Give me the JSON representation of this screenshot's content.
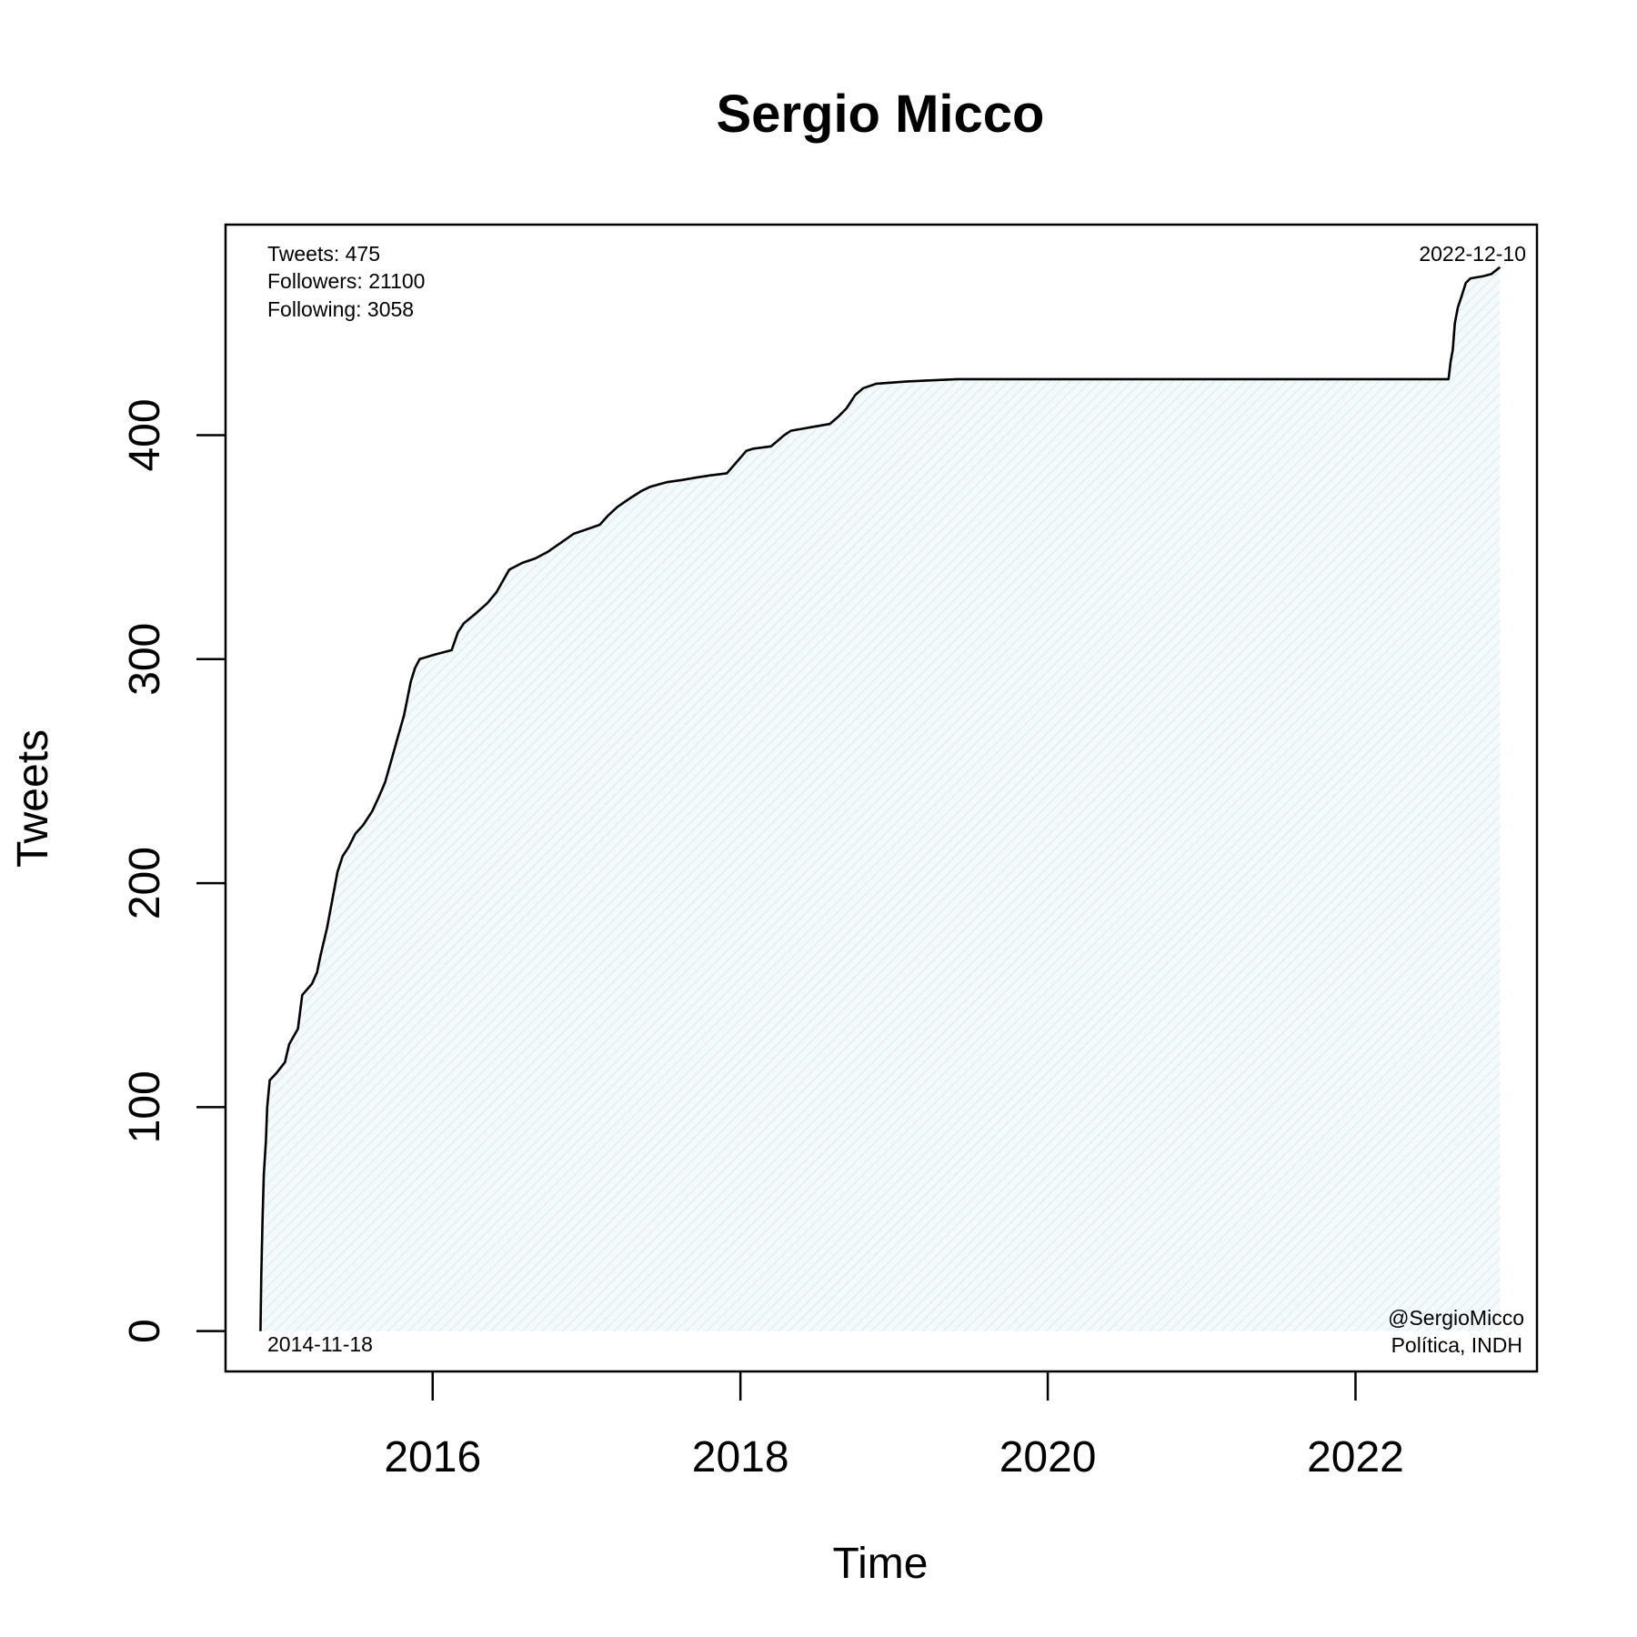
{
  "chart_data": {
    "type": "area",
    "title": "Sergio Micco",
    "xlabel": "Time",
    "ylabel": "Tweets",
    "xlim": [
      "2014-08-27",
      "2023-03-08"
    ],
    "ylim": [
      -18,
      494
    ],
    "x_ticks": [
      {
        "date": "2016-01-01",
        "label": "2016"
      },
      {
        "date": "2018-01-01",
        "label": "2018"
      },
      {
        "date": "2020-01-01",
        "label": "2020"
      },
      {
        "date": "2022-01-01",
        "label": "2022"
      }
    ],
    "y_ticks": [
      {
        "value": 0,
        "label": "0"
      },
      {
        "value": 100,
        "label": "100"
      },
      {
        "value": 200,
        "label": "200"
      },
      {
        "value": 300,
        "label": "300"
      },
      {
        "value": 400,
        "label": "400"
      }
    ],
    "grid": false,
    "line_color": "#000000",
    "fill_color": "#dff0f4",
    "series": [
      {
        "x": [
          "2014-11-18",
          "2014-11-20",
          "2014-11-23",
          "2014-11-26",
          "2014-12-01",
          "2014-12-04",
          "2014-12-10",
          "2014-12-25",
          "2015-01-15",
          "2015-01-25",
          "2015-02-15",
          "2015-02-25",
          "2015-03-20",
          "2015-04-01",
          "2015-04-10",
          "2015-04-25",
          "2015-05-10",
          "2015-05-20",
          "2015-06-01",
          "2015-06-15",
          "2015-07-01",
          "2015-07-20",
          "2015-08-10",
          "2015-08-25",
          "2015-09-10",
          "2015-09-25",
          "2015-10-10",
          "2015-10-25",
          "2015-11-10",
          "2015-11-20",
          "2015-12-01",
          "2016-01-05",
          "2016-02-15",
          "2016-03-01",
          "2016-03-15",
          "2016-04-10",
          "2016-05-10",
          "2016-06-01",
          "2016-07-01",
          "2016-08-01",
          "2016-09-01",
          "2016-10-01",
          "2016-11-01",
          "2016-12-01",
          "2017-01-01",
          "2017-02-01",
          "2017-02-20",
          "2017-03-15",
          "2017-04-15",
          "2017-05-10",
          "2017-06-01",
          "2017-06-20",
          "2017-07-10",
          "2017-08-15",
          "2017-09-15",
          "2017-10-20",
          "2017-11-30",
          "2018-01-15",
          "2018-02-01",
          "2018-03-15",
          "2018-04-15",
          "2018-05-01",
          "2018-06-01",
          "2018-07-01",
          "2018-08-01",
          "2018-08-20",
          "2018-09-10",
          "2018-10-01",
          "2018-10-20",
          "2018-11-20",
          "2019-02-01",
          "2019-06-01",
          "2019-10-01",
          "2020-06-01",
          "2021-06-01",
          "2022-01-01",
          "2022-08-10",
          "2022-08-15",
          "2022-08-20",
          "2022-08-25",
          "2022-09-01",
          "2022-09-10",
          "2022-09-20",
          "2022-10-01",
          "2022-11-01",
          "2022-11-20",
          "2022-12-10"
        ],
        "y": [
          0,
          25,
          50,
          70,
          85,
          100,
          112,
          115,
          120,
          128,
          135,
          150,
          155,
          160,
          168,
          180,
          195,
          205,
          212,
          216,
          222,
          226,
          232,
          238,
          245,
          255,
          265,
          275,
          290,
          296,
          300,
          302,
          304,
          312,
          316,
          320,
          325,
          330,
          340,
          343,
          345,
          348,
          352,
          356,
          358,
          360,
          364,
          368,
          372,
          375,
          377,
          378,
          379,
          380,
          381,
          382,
          383,
          393,
          394,
          395,
          400,
          402,
          403,
          404,
          405,
          408,
          412,
          418,
          421,
          423,
          424,
          425,
          425,
          425,
          425,
          425,
          425,
          433,
          438,
          450,
          457,
          462,
          468,
          470,
          471,
          472,
          475
        ]
      }
    ],
    "annotations": {
      "stats": [
        "Tweets: 475",
        "Followers: 21100",
        "Following: 3058"
      ],
      "start_date": "2014-11-18",
      "end_date": "2022-12-10",
      "handle": "@SergioMicco",
      "description": "Política, INDH"
    }
  }
}
